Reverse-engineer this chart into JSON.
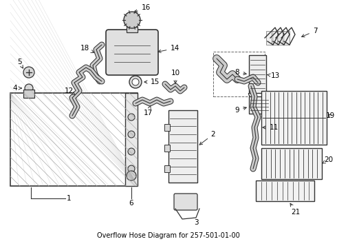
{
  "title": "Overflow Hose Diagram for 257-501-01-00",
  "background_color": "#ffffff",
  "line_color": "#333333",
  "text_color": "#000000",
  "figsize": [
    4.9,
    3.6
  ],
  "dpi": 100
}
